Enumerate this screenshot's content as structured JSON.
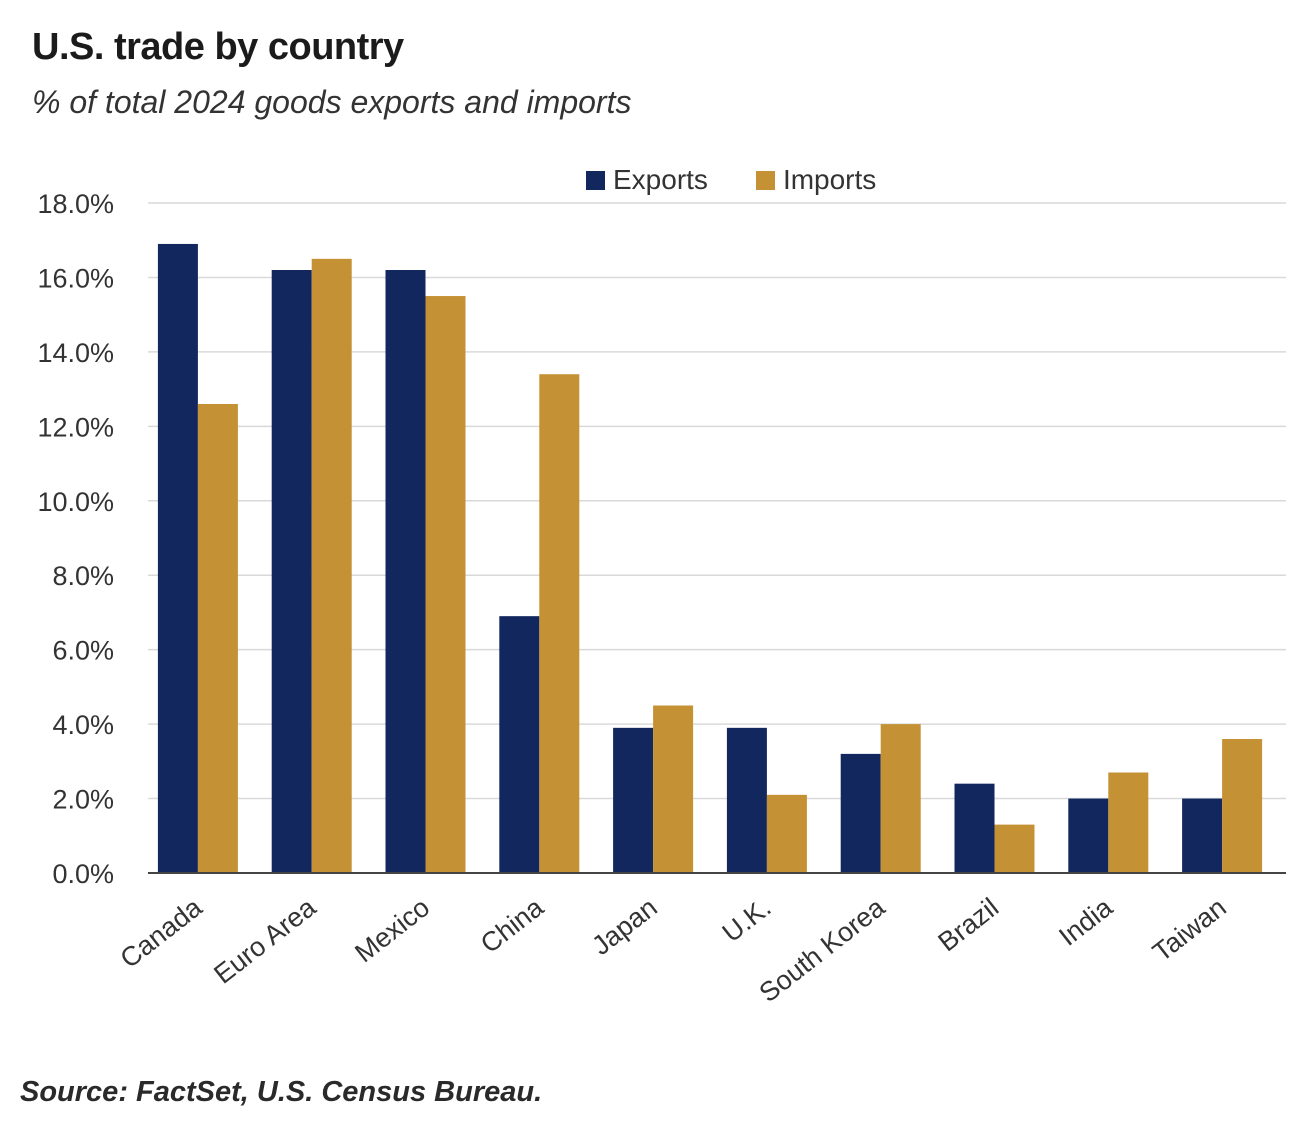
{
  "chart_data": {
    "type": "bar",
    "title": "U.S. trade by country",
    "subtitle": "% of total 2024 goods exports and imports",
    "source": "Source: FactSet, U.S. Census Bureau.",
    "categories": [
      "Canada",
      "Euro Area",
      "Mexico",
      "China",
      "Japan",
      "U.K.",
      "South Korea",
      "Brazil",
      "India",
      "Taiwan"
    ],
    "series": [
      {
        "name": "Exports",
        "color": "#13275f",
        "values": [
          16.9,
          16.2,
          16.2,
          6.9,
          3.9,
          3.9,
          3.2,
          2.4,
          2.0,
          2.0
        ]
      },
      {
        "name": "Imports",
        "color": "#c49134",
        "values": [
          12.6,
          16.5,
          15.5,
          13.4,
          4.5,
          2.1,
          4.0,
          1.3,
          2.7,
          3.6
        ]
      }
    ],
    "ylim": [
      0,
      18
    ],
    "yticks": [
      0,
      2,
      4,
      6,
      8,
      10,
      12,
      14,
      16,
      18
    ],
    "ytick_labels": [
      "0.0%",
      "2.0%",
      "4.0%",
      "6.0%",
      "8.0%",
      "10.0%",
      "12.0%",
      "14.0%",
      "16.0%",
      "18.0%"
    ],
    "xlabel": "",
    "ylabel": "",
    "grid": true,
    "legend_position": "top-center"
  }
}
